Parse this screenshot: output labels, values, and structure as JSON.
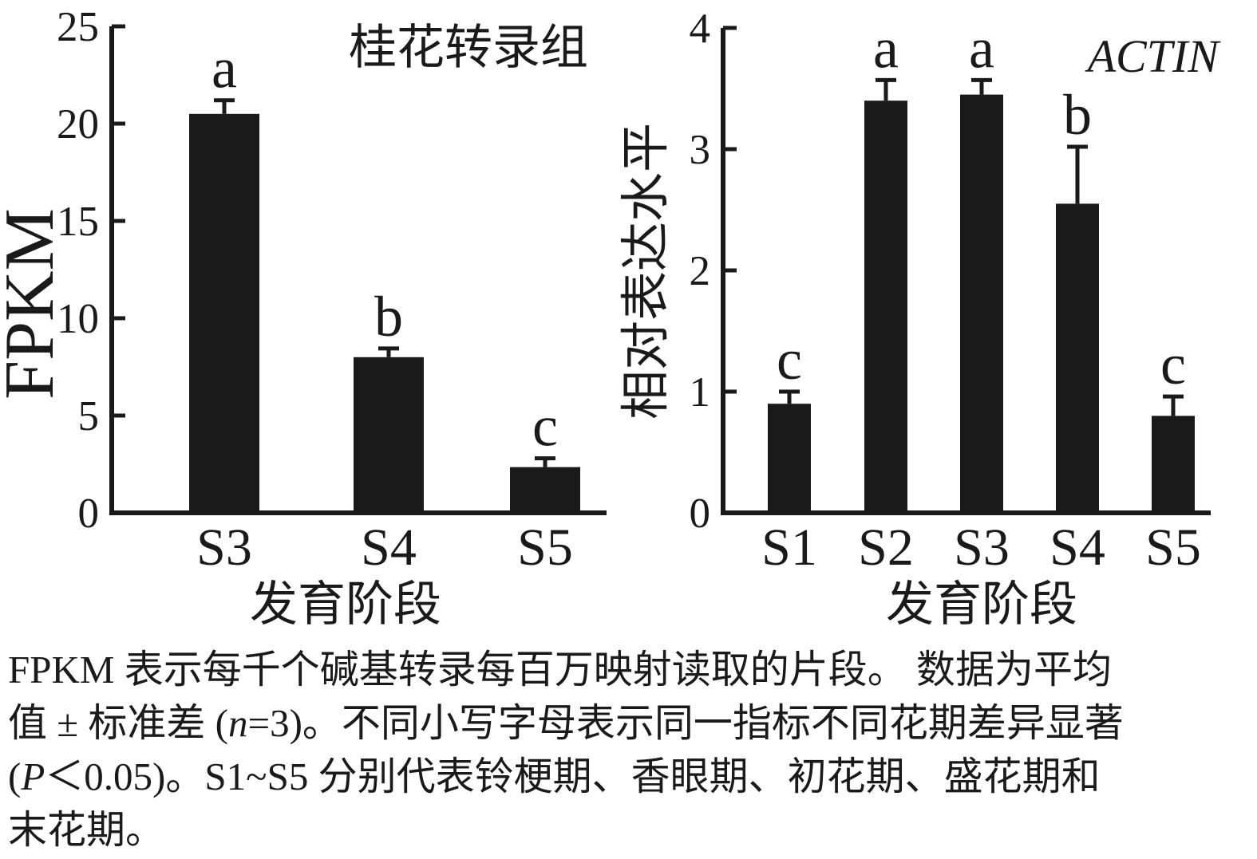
{
  "figure": {
    "background": "#ffffff",
    "ink_color": "#1a1a1a"
  },
  "chart_data": [
    {
      "type": "bar",
      "title": "桂花转录组",
      "title_style": "normal",
      "ylabel": "FPKM",
      "xlabel": "发育阶段",
      "categories": [
        "S3",
        "S4",
        "S5"
      ],
      "values": [
        20.5,
        8.0,
        2.35
      ],
      "errors_plus": [
        0.7,
        0.45,
        0.45
      ],
      "sig_letters": [
        "a",
        "b",
        "c"
      ],
      "ylim": [
        0,
        25
      ],
      "yticks": [
        0,
        5,
        10,
        15,
        20,
        25
      ],
      "bar_color": "#1a1a1a",
      "grid": false,
      "legend": "none",
      "error_bars": "upper standard-deviation whiskers with caps"
    },
    {
      "type": "bar",
      "title": "ACTIN",
      "title_style": "italic",
      "ylabel": "相对表达水平",
      "xlabel": "发育阶段",
      "categories": [
        "S1",
        "S2",
        "S3",
        "S4",
        "S5"
      ],
      "values": [
        0.9,
        3.4,
        3.45,
        2.55,
        0.8
      ],
      "errors_plus": [
        0.1,
        0.17,
        0.12,
        0.47,
        0.16
      ],
      "sig_letters": [
        "c",
        "a",
        "a",
        "b",
        "c"
      ],
      "ylim": [
        0,
        4
      ],
      "yticks": [
        0,
        1,
        2,
        3,
        4
      ],
      "bar_color": "#1a1a1a",
      "grid": false,
      "legend": "none",
      "error_bars": "upper standard-deviation whiskers with caps"
    }
  ],
  "caption": {
    "lines": [
      [
        {
          "text": "FPKM 表示每千个碱基转录每百万映射读取的片段。 数据为平均"
        }
      ],
      [
        {
          "text": "值 ± 标准差 ("
        },
        {
          "text": "n",
          "italic": true
        },
        {
          "text": "=3)。不同小写字母表示同一指标不同花期差异显著"
        }
      ],
      [
        {
          "text": "("
        },
        {
          "text": "P",
          "italic": true
        },
        {
          "text": "＜0.05)。S1~S5 分别代表铃梗期、香眼期、初花期、盛花期和"
        }
      ],
      [
        {
          "text": "末花期。"
        }
      ]
    ]
  }
}
